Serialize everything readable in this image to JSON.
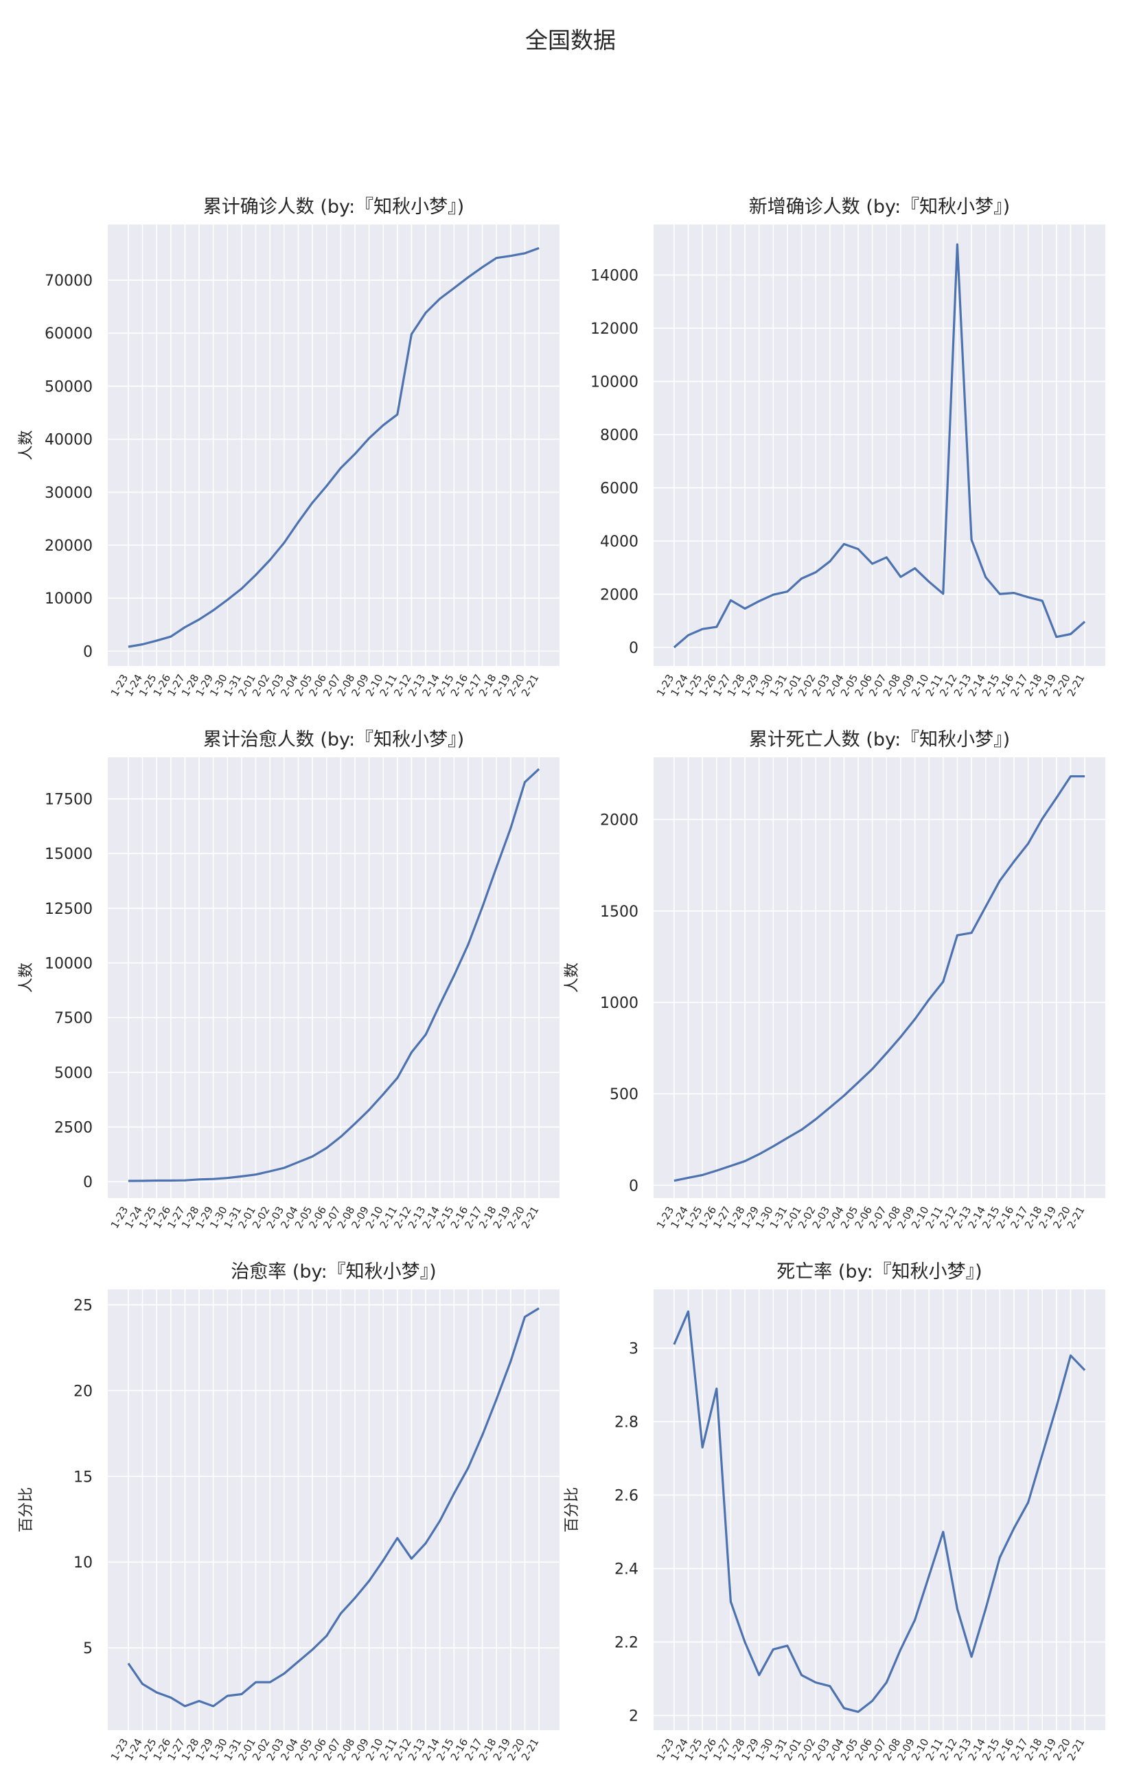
{
  "suptitle": "全国数据",
  "colors": {
    "background": "#eaeaf2",
    "grid": "#ffffff",
    "line": "#4c72b0"
  },
  "dates": [
    "1-23",
    "1-24",
    "1-25",
    "1-26",
    "1-27",
    "1-28",
    "1-29",
    "1-30",
    "1-31",
    "2-01",
    "2-02",
    "2-03",
    "2-04",
    "2-05",
    "2-06",
    "2-07",
    "2-08",
    "2-09",
    "2-10",
    "2-11",
    "2-12",
    "2-13",
    "2-14",
    "2-15",
    "2-16",
    "2-17",
    "2-18",
    "2-19",
    "2-20",
    "2-21"
  ],
  "chart_data": [
    {
      "type": "line",
      "title": "累计确诊人数 (by:『知秋小梦』)",
      "ylabel": "人数",
      "ylim": [
        -2800,
        80500
      ],
      "yticks": [
        0,
        10000,
        20000,
        30000,
        40000,
        50000,
        60000,
        70000
      ],
      "y": [
        830,
        1287,
        1975,
        2744,
        4515,
        5974,
        7711,
        9692,
        11791,
        14380,
        17205,
        20438,
        24324,
        28018,
        31161,
        34546,
        37198,
        40171,
        42638,
        44653,
        59804,
        63851,
        66492,
        68500,
        70548,
        72436,
        74185,
        74576,
        75077,
        76045
      ]
    },
    {
      "type": "line",
      "title": "新增确诊人数 (by:『知秋小梦』)",
      "ylabel": "",
      "ylim": [
        -700,
        15900
      ],
      "yticks": [
        0,
        2000,
        4000,
        6000,
        8000,
        10000,
        12000,
        14000
      ],
      "y": [
        0,
        457,
        688,
        769,
        1771,
        1459,
        1737,
        1981,
        2099,
        2589,
        2825,
        3233,
        3886,
        3694,
        3143,
        3385,
        2652,
        2973,
        2467,
        2015,
        15152,
        4047,
        2641,
        2008,
        2048,
        1888,
        1749,
        391,
        501,
        968
      ]
    },
    {
      "type": "line",
      "title": "累计治愈人数 (by:『知秋小梦』)",
      "ylabel": "人数",
      "ylim": [
        -750,
        19400
      ],
      "yticks": [
        0,
        2500,
        5000,
        7500,
        10000,
        12500,
        15000,
        17500
      ],
      "y": [
        34,
        38,
        49,
        51,
        60,
        103,
        124,
        171,
        243,
        328,
        475,
        632,
        892,
        1153,
        1540,
        2050,
        2649,
        3281,
        3996,
        4740,
        5911,
        6723,
        8096,
        9419,
        10844,
        12552,
        14376,
        16155,
        18264,
        18863
      ]
    },
    {
      "type": "line",
      "title": "累计死亡人数 (by:『知秋小梦』)",
      "ylabel": "人数",
      "ylim": [
        -70,
        2340
      ],
      "yticks": [
        0,
        500,
        1000,
        1500,
        2000
      ],
      "y": [
        25,
        41,
        56,
        80,
        106,
        132,
        170,
        213,
        259,
        304,
        361,
        425,
        490,
        563,
        636,
        722,
        811,
        908,
        1016,
        1113,
        1367,
        1380,
        1523,
        1665,
        1770,
        1868,
        2004,
        2118,
        2236,
        2236
      ]
    },
    {
      "type": "line",
      "title": "治愈率 (by:『知秋小梦』)",
      "ylabel": "百分比",
      "ylim": [
        0.2,
        25.9
      ],
      "yticks": [
        5,
        10,
        15,
        20,
        25
      ],
      "y": [
        4.1,
        2.9,
        2.4,
        2.1,
        1.6,
        1.9,
        1.6,
        2.2,
        2.3,
        3.0,
        3.0,
        3.5,
        4.2,
        4.9,
        5.7,
        7.0,
        7.9,
        8.9,
        10.1,
        11.4,
        10.2,
        11.1,
        12.4,
        14.0,
        15.5,
        17.4,
        19.5,
        21.7,
        24.3,
        24.8
      ]
    },
    {
      "type": "line",
      "title": "死亡率 (by:『知秋小梦』)",
      "ylabel": "百分比",
      "ylim": [
        1.96,
        3.16
      ],
      "yticks": [
        2.0,
        2.2,
        2.4,
        2.6,
        2.8,
        3.0
      ],
      "y": [
        3.01,
        3.1,
        2.73,
        2.89,
        2.31,
        2.2,
        2.11,
        2.18,
        2.19,
        2.11,
        2.09,
        2.08,
        2.02,
        2.01,
        2.04,
        2.09,
        2.18,
        2.26,
        2.38,
        2.5,
        2.29,
        2.16,
        2.29,
        2.43,
        2.51,
        2.58,
        2.71,
        2.84,
        2.98,
        2.94
      ]
    }
  ]
}
